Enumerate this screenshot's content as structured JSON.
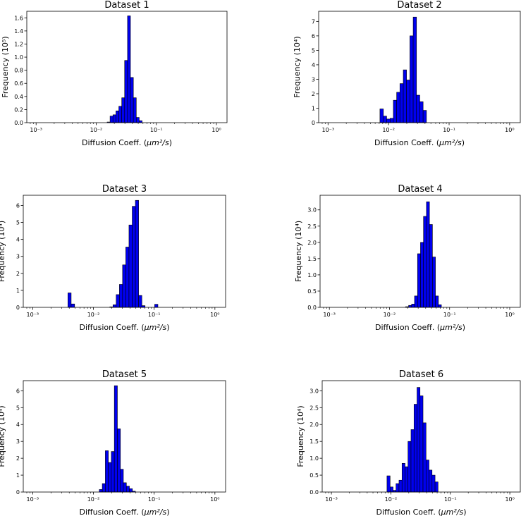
{
  "chart_data": [
    {
      "type": "bar",
      "title": "Dataset 1",
      "xlabel_prefix": "Diffusion Coeff. (",
      "xlabel_math": "μm²/s",
      "xlabel_suffix": ")",
      "ylabel": "Frequency (10⁵)",
      "x_scale": "log",
      "xlim": [
        0.0007,
        1.5
      ],
      "ylim": [
        0,
        1.7
      ],
      "x_ticks": [
        {
          "v": 0.001,
          "label": "10⁻³"
        },
        {
          "v": 0.01,
          "label": "10⁻²"
        },
        {
          "v": 0.1,
          "label": "10⁻¹"
        },
        {
          "v": 1,
          "label": "10⁰"
        }
      ],
      "y_ticks": [
        0,
        0.2,
        0.4,
        0.6,
        0.8,
        1.0,
        1.2,
        1.4,
        1.6
      ],
      "y_tick_labels": [
        "0.0",
        "0.2",
        "0.4",
        "0.6",
        "0.8",
        "1.0",
        "1.2",
        "1.4",
        "1.6"
      ],
      "bin_edges": [
        0.0152,
        0.017,
        0.019,
        0.0213,
        0.0238,
        0.0266,
        0.0297,
        0.0332,
        0.0371,
        0.0415,
        0.0464,
        0.0519,
        0.058
      ],
      "values": [
        0.01,
        0.1,
        0.12,
        0.18,
        0.25,
        0.38,
        0.95,
        1.63,
        0.69,
        0.38,
        0.08,
        0.03
      ]
    },
    {
      "type": "bar",
      "title": "Dataset 2",
      "xlabel_prefix": "Diffusion Coeff. (",
      "xlabel_math": "μm²/s",
      "xlabel_suffix": ")",
      "ylabel": "Frequency (10⁴)",
      "x_scale": "log",
      "xlim": [
        0.0007,
        1.5
      ],
      "ylim": [
        0,
        7.7
      ],
      "x_ticks": [
        {
          "v": 0.001,
          "label": "10⁻³"
        },
        {
          "v": 0.01,
          "label": "10⁻²"
        },
        {
          "v": 0.1,
          "label": "10⁻¹"
        },
        {
          "v": 1,
          "label": "10⁰"
        }
      ],
      "y_ticks": [
        0,
        1,
        2,
        3,
        4,
        5,
        6,
        7
      ],
      "y_tick_labels": [
        "0",
        "1",
        "2",
        "3",
        "4",
        "5",
        "6",
        "7"
      ],
      "bin_edges": [
        0.0072,
        0.0082,
        0.0093,
        0.0106,
        0.012,
        0.0136,
        0.0154,
        0.0175,
        0.0198,
        0.0225,
        0.0255,
        0.0289,
        0.0328,
        0.0372,
        0.0422,
        0.0479
      ],
      "values": [
        0.95,
        0.45,
        0.25,
        0.3,
        1.55,
        2.1,
        2.7,
        3.65,
        2.95,
        6.0,
        7.3,
        1.9,
        1.45,
        0.85,
        0
      ]
    },
    {
      "type": "bar",
      "title": "Dataset 3",
      "xlabel_prefix": "Diffusion Coeff. (",
      "xlabel_math": "μm²/s",
      "xlabel_suffix": ")",
      "ylabel": "Frequency (10⁴)",
      "x_scale": "log",
      "xlim": [
        0.0007,
        1.5
      ],
      "ylim": [
        0,
        6.6
      ],
      "x_ticks": [
        {
          "v": 0.001,
          "label": "10⁻³"
        },
        {
          "v": 0.01,
          "label": "10⁻²"
        },
        {
          "v": 0.1,
          "label": "10⁻¹"
        },
        {
          "v": 1,
          "label": "10⁰"
        }
      ],
      "y_ticks": [
        0,
        1,
        2,
        3,
        4,
        5,
        6
      ],
      "y_tick_labels": [
        "0",
        "1",
        "2",
        "3",
        "4",
        "5",
        "6"
      ],
      "bin_edges": [
        0.0038,
        0.0043,
        0.0049,
        0.0055,
        0.0062,
        0.007,
        0.0079,
        0.0089,
        0.0101,
        0.0114,
        0.0129,
        0.0146,
        0.0165,
        0.0186,
        0.021,
        0.0237,
        0.0268,
        0.0302,
        0.0341,
        0.0385,
        0.0435,
        0.0491,
        0.0555,
        0.0627,
        0.0708,
        0.08,
        0.0903,
        0.102,
        0.1152,
        0.1301
      ],
      "values": [
        0.85,
        0.2,
        0,
        0,
        0,
        0,
        0,
        0,
        0,
        0,
        0,
        0,
        0,
        0.03,
        0.15,
        0.75,
        1.35,
        2.5,
        3.55,
        4.85,
        5.95,
        6.3,
        0.7,
        0.1,
        0,
        0,
        0,
        0.18,
        0
      ]
    },
    {
      "type": "bar",
      "title": "Dataset 4",
      "xlabel_prefix": "Diffusion Coeff. (",
      "xlabel_math": "μm²/s",
      "xlabel_suffix": ")",
      "ylabel": "Frequency (10⁴)",
      "x_scale": "log",
      "xlim": [
        0.0007,
        1.5
      ],
      "ylim": [
        0,
        3.45
      ],
      "x_ticks": [
        {
          "v": 0.001,
          "label": "10⁻³"
        },
        {
          "v": 0.01,
          "label": "10⁻²"
        },
        {
          "v": 0.1,
          "label": "10⁻¹"
        },
        {
          "v": 1,
          "label": "10⁰"
        }
      ],
      "y_ticks": [
        0,
        0.5,
        1.0,
        1.5,
        2.0,
        2.5,
        3.0
      ],
      "y_tick_labels": [
        "0.0",
        "0.5",
        "1.0",
        "1.5",
        "2.0",
        "2.5",
        "3.0"
      ],
      "bin_edges": [
        0.0185,
        0.0208,
        0.0233,
        0.0261,
        0.0293,
        0.0328,
        0.0368,
        0.0412,
        0.0462,
        0.0518,
        0.0581,
        0.0651,
        0.073
      ],
      "values": [
        0.02,
        0.06,
        0.1,
        0.35,
        1.65,
        2.0,
        2.8,
        3.25,
        2.55,
        1.55,
        0.35,
        0.08
      ]
    },
    {
      "type": "bar",
      "title": "Dataset 5",
      "xlabel_prefix": "Diffusion Coeff. (",
      "xlabel_math": "μm²/s",
      "xlabel_suffix": ")",
      "ylabel": "Frequency (10⁴)",
      "x_scale": "log",
      "xlim": [
        0.0007,
        1.5
      ],
      "ylim": [
        0,
        6.6
      ],
      "x_ticks": [
        {
          "v": 0.001,
          "label": "10⁻³"
        },
        {
          "v": 0.01,
          "label": "10⁻²"
        },
        {
          "v": 0.1,
          "label": "10⁻¹"
        },
        {
          "v": 1,
          "label": "10⁰"
        }
      ],
      "y_ticks": [
        0,
        1,
        2,
        3,
        4,
        5,
        6
      ],
      "y_tick_labels": [
        "0",
        "1",
        "2",
        "3",
        "4",
        "5",
        "6"
      ],
      "bin_edges": [
        0.0125,
        0.014,
        0.0157,
        0.0176,
        0.0197,
        0.0221,
        0.0248,
        0.0278,
        0.0311,
        0.0349,
        0.0391,
        0.0438,
        0.0491,
        0.055
      ],
      "values": [
        0.15,
        0.5,
        2.45,
        1.75,
        2.4,
        6.3,
        3.75,
        1.35,
        0.55,
        0.35,
        0.2,
        0.05,
        0
      ]
    },
    {
      "type": "bar",
      "title": "Dataset 6",
      "xlabel_prefix": "Diffusion Coeff. (",
      "xlabel_math": "μm²/s",
      "xlabel_suffix": ")",
      "ylabel": "Frequency (10⁴)",
      "x_scale": "log",
      "xlim": [
        0.0007,
        1.5
      ],
      "ylim": [
        0,
        3.3
      ],
      "x_ticks": [
        {
          "v": 0.001,
          "label": "10⁻³"
        },
        {
          "v": 0.01,
          "label": "10⁻²"
        },
        {
          "v": 0.1,
          "label": "10⁻¹"
        },
        {
          "v": 1,
          "label": "10⁰"
        }
      ],
      "y_ticks": [
        0,
        0.5,
        1.0,
        1.5,
        2.0,
        2.5,
        3.0
      ],
      "y_tick_labels": [
        "0.0",
        "0.5",
        "1.0",
        "1.5",
        "2.0",
        "2.5",
        "3.0"
      ],
      "bin_edges": [
        0.0086,
        0.0097,
        0.0109,
        0.0122,
        0.0137,
        0.0154,
        0.0173,
        0.0194,
        0.0218,
        0.0245,
        0.0275,
        0.0309,
        0.0347,
        0.039,
        0.0438,
        0.0492,
        0.0553,
        0.0621,
        0.0698
      ],
      "values": [
        0.48,
        0.15,
        0.05,
        0.25,
        0.35,
        0.85,
        0.75,
        1.5,
        1.85,
        2.6,
        3.1,
        2.85,
        2.05,
        0.95,
        0.65,
        0.5,
        0.3,
        0
      ]
    }
  ]
}
